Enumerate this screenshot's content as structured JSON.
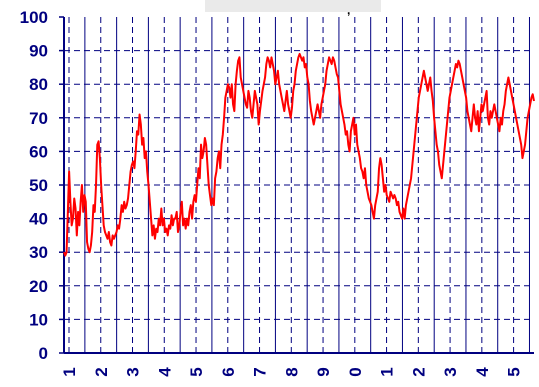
{
  "chart_data": {
    "type": "line",
    "title": "",
    "title_fragment": ",",
    "xlabel": "",
    "ylabel": "",
    "ylim": [
      0,
      100
    ],
    "y_ticks": [
      "0",
      "10",
      "20",
      "30",
      "40",
      "50",
      "60",
      "70",
      "80",
      "90",
      "100"
    ],
    "x_tick_labels": [
      "1",
      "2",
      "3",
      "4",
      "5",
      "6",
      "7",
      "8",
      "9",
      "0",
      "1",
      "2",
      "3",
      "4",
      "5"
    ],
    "grid": true,
    "legend": "none",
    "colors": {
      "line": "#ff0000",
      "axis": "#000080",
      "solid_grid": "#000080",
      "dashed_grid": "#000080",
      "title_box": "#eaeaea"
    },
    "series": [
      {
        "values": [
          30,
          29,
          30,
          42,
          54,
          45,
          38,
          40,
          46,
          43,
          35,
          42,
          38,
          45,
          50,
          42,
          47,
          45,
          33,
          31,
          30,
          32,
          36,
          44,
          42,
          50,
          62,
          63,
          58,
          50,
          44,
          38,
          36,
          35,
          34,
          36,
          33,
          32,
          35,
          34,
          35,
          36,
          38,
          37,
          40,
          44,
          42,
          45,
          43,
          44,
          46,
          50,
          54,
          56,
          57,
          55,
          60,
          66,
          65,
          71,
          68,
          62,
          64,
          58,
          60,
          54,
          50,
          45,
          40,
          35,
          38,
          34,
          37,
          36,
          40,
          38,
          43,
          38,
          40,
          36,
          37,
          35,
          38,
          37,
          41,
          38,
          40,
          40,
          42,
          36,
          38,
          42,
          45,
          38,
          40,
          37,
          40,
          38,
          42,
          44,
          40,
          45,
          47,
          45,
          50,
          55,
          52,
          62,
          58,
          60,
          64,
          62,
          56,
          50,
          47,
          44,
          46,
          44,
          52,
          54,
          58,
          60,
          55,
          62,
          65,
          70,
          76,
          78,
          80,
          79,
          76,
          80,
          74,
          72,
          80,
          84,
          87,
          88,
          82,
          80,
          78,
          76,
          74,
          73,
          78,
          76,
          72,
          70,
          74,
          78,
          76,
          74,
          68,
          72,
          75,
          78,
          80,
          82,
          86,
          88,
          87,
          85,
          88,
          86,
          84,
          80,
          82,
          84,
          80,
          78,
          76,
          74,
          72,
          75,
          78,
          74,
          72,
          70,
          73,
          78,
          80,
          84,
          86,
          88,
          89,
          88,
          87,
          88,
          85,
          86,
          82,
          80,
          75,
          72,
          70,
          68,
          70,
          72,
          74,
          72,
          70,
          74,
          76,
          78,
          80,
          84,
          86,
          88,
          87,
          86,
          88,
          87,
          85,
          83,
          82,
          78,
          74,
          72,
          70,
          68,
          65,
          66,
          62,
          60,
          66,
          68,
          70,
          65,
          68,
          62,
          60,
          58,
          55,
          54,
          52,
          55,
          50,
          48,
          46,
          45,
          44,
          42,
          40,
          44,
          46,
          48,
          55,
          58,
          56,
          52,
          48,
          50,
          47,
          46,
          45,
          48,
          47,
          46,
          47,
          46,
          44,
          45,
          42,
          41,
          40,
          43,
          40,
          44,
          46,
          48,
          50,
          52,
          56,
          60,
          64,
          68,
          72,
          76,
          78,
          80,
          82,
          84,
          82,
          80,
          78,
          80,
          82,
          78,
          75,
          70,
          66,
          62,
          60,
          56,
          54,
          52,
          56,
          60,
          64,
          68,
          72,
          76,
          78,
          80,
          82,
          84,
          86,
          85,
          87,
          86,
          84,
          82,
          80,
          78,
          76,
          72,
          70,
          68,
          66,
          70,
          74,
          70,
          68,
          72,
          66,
          70,
          74,
          72,
          74,
          76,
          78,
          70,
          68,
          72,
          70,
          72,
          74,
          72,
          70,
          68,
          66,
          70,
          68,
          72,
          74,
          78,
          80,
          82,
          80,
          78,
          76,
          74,
          72,
          70,
          68,
          66,
          64,
          62,
          58,
          60,
          62,
          66,
          70,
          72,
          74,
          76,
          77,
          75
        ]
      }
    ]
  }
}
